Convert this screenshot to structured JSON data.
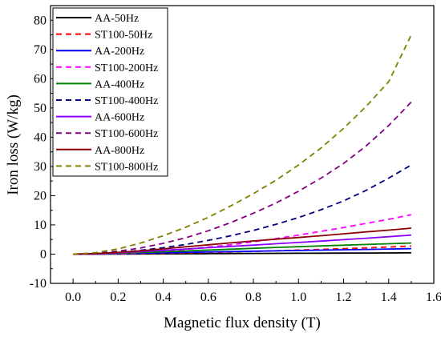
{
  "chart_data": {
    "type": "line",
    "title": "",
    "xlabel": "Magnetic flux density (T)",
    "ylabel": "Iron loss (W/kg)",
    "xlim": [
      -0.1,
      1.6
    ],
    "ylim": [
      -10,
      85
    ],
    "xticks": [
      0.0,
      0.2,
      0.4,
      0.6,
      0.8,
      1.0,
      1.2,
      1.4,
      1.6
    ],
    "xtick_labels": [
      "0.0",
      "0.2",
      "0.4",
      "0.6",
      "0.8",
      "1.0",
      "1.2",
      "1.4",
      "1.6"
    ],
    "yticks": [
      -10,
      0,
      10,
      20,
      30,
      40,
      50,
      60,
      70,
      80
    ],
    "ytick_labels": [
      "-10",
      "0",
      "10",
      "20",
      "30",
      "40",
      "50",
      "60",
      "70",
      "80"
    ],
    "grid": false,
    "legend_position": "top-left",
    "x": [
      0.0,
      0.1,
      0.2,
      0.3,
      0.4,
      0.5,
      0.6,
      0.7,
      0.8,
      0.9,
      1.0,
      1.1,
      1.2,
      1.3,
      1.4,
      1.5
    ],
    "series": [
      {
        "name": "AA-50Hz",
        "color": "#000000",
        "dash": "solid",
        "values": [
          0,
          0.02,
          0.05,
          0.08,
          0.11,
          0.14,
          0.17,
          0.2,
          0.23,
          0.26,
          0.29,
          0.32,
          0.35,
          0.38,
          0.41,
          0.45
        ]
      },
      {
        "name": "ST100-50Hz",
        "color": "#ff0000",
        "dash": "dashed",
        "values": [
          0,
          0.02,
          0.07,
          0.16,
          0.27,
          0.41,
          0.57,
          0.74,
          0.94,
          1.15,
          1.38,
          1.62,
          1.88,
          2.15,
          2.44,
          2.75
        ]
      },
      {
        "name": "AA-200Hz",
        "color": "#0000ff",
        "dash": "solid",
        "values": [
          0,
          0.05,
          0.15,
          0.3,
          0.45,
          0.6,
          0.75,
          0.88,
          1.0,
          1.12,
          1.25,
          1.37,
          1.5,
          1.62,
          1.75,
          1.88
        ]
      },
      {
        "name": "ST100-200Hz",
        "color": "#ff00ff",
        "dash": "dashed",
        "values": [
          0,
          0.05,
          0.2,
          0.5,
          1.0,
          1.6,
          2.4,
          3.2,
          4.2,
          5.3,
          6.5,
          7.8,
          9.1,
          10.5,
          11.9,
          13.5
        ]
      },
      {
        "name": "AA-400Hz",
        "color": "#008000",
        "dash": "solid",
        "values": [
          0,
          0.1,
          0.3,
          0.55,
          0.8,
          1.1,
          1.4,
          1.7,
          2.0,
          2.3,
          2.55,
          2.8,
          3.05,
          3.3,
          3.55,
          3.8
        ]
      },
      {
        "name": "ST100-400Hz",
        "color": "#000080",
        "dash": "dashed",
        "values": [
          0,
          0.2,
          0.6,
          1.3,
          2.2,
          3.3,
          4.7,
          6.3,
          8.1,
          10.2,
          12.5,
          15.2,
          18.2,
          21.8,
          26.0,
          30.5
        ]
      },
      {
        "name": "AA-600Hz",
        "color": "#8b00ff",
        "dash": "solid",
        "values": [
          0,
          0.15,
          0.45,
          0.85,
          1.3,
          1.75,
          2.2,
          2.65,
          3.1,
          3.55,
          4.0,
          4.45,
          4.95,
          5.45,
          5.95,
          6.5
        ]
      },
      {
        "name": "ST100-600Hz",
        "color": "#800080",
        "dash": "dashed",
        "values": [
          0,
          0.3,
          1.0,
          2.1,
          3.7,
          5.6,
          8.0,
          10.8,
          14.0,
          17.5,
          21.5,
          26.0,
          31.0,
          37.0,
          44.0,
          52.0
        ]
      },
      {
        "name": "AA-800Hz",
        "color": "#8b0000",
        "dash": "solid",
        "values": [
          0,
          0.2,
          0.6,
          1.15,
          1.8,
          2.5,
          3.2,
          3.85,
          4.5,
          5.1,
          5.7,
          6.3,
          6.95,
          7.6,
          8.2,
          8.9
        ]
      },
      {
        "name": "ST100-800Hz",
        "color": "#808000",
        "dash": "dashed",
        "values": [
          0,
          0.5,
          1.8,
          3.8,
          6.3,
          9.2,
          12.6,
          16.5,
          20.7,
          25.3,
          30.5,
          36.3,
          43.0,
          50.5,
          59.0,
          75.0
        ]
      }
    ]
  }
}
